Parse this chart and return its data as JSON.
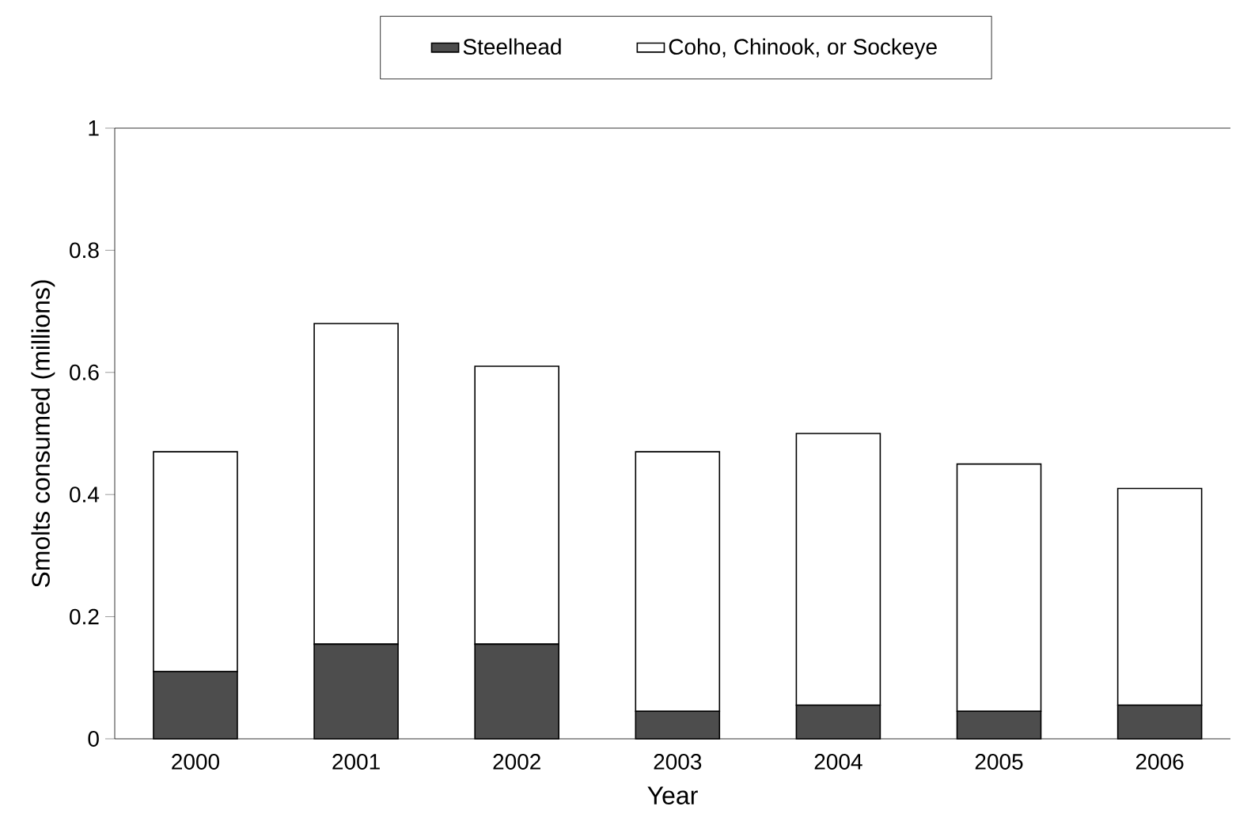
{
  "chart_data": {
    "type": "bar",
    "stacked": true,
    "xlabel": "Year",
    "ylabel": "Smolts consumed (millions)",
    "categories": [
      "2000",
      "2001",
      "2002",
      "2003",
      "2004",
      "2005",
      "2006"
    ],
    "series": [
      {
        "name": "Steelhead",
        "color": "#4d4d4d",
        "values": [
          0.11,
          0.155,
          0.155,
          0.045,
          0.055,
          0.045,
          0.055
        ]
      },
      {
        "name": "Coho, Chinook, or Sockeye",
        "color": "#ffffff",
        "values": [
          0.36,
          0.525,
          0.455,
          0.425,
          0.445,
          0.405,
          0.355
        ]
      }
    ],
    "ylim": [
      0,
      1
    ],
    "yticks": [
      0,
      0.2,
      0.4,
      0.6,
      0.8,
      1
    ],
    "legend": "top"
  }
}
